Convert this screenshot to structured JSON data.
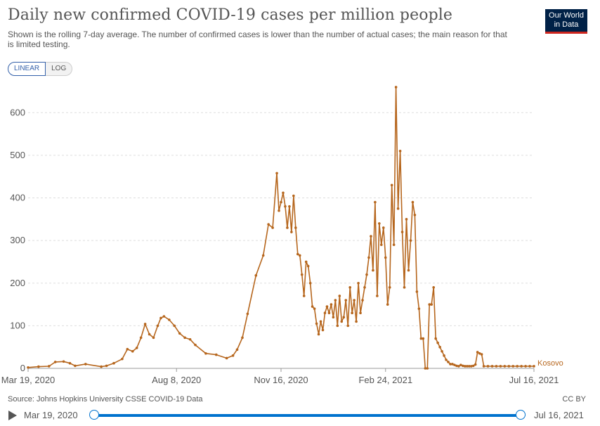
{
  "header": {
    "title": "Daily new confirmed COVID-19 cases per million people",
    "subtitle": "Shown is the rolling 7-day average. The number of confirmed cases is lower than the number of actual cases; the main reason for that is limited testing."
  },
  "logo": {
    "line1": "Our World",
    "line2": "in Data"
  },
  "controls": {
    "linear_label": "LINEAR",
    "log_label": "LOG"
  },
  "footer": {
    "source": "Source: Johns Hopkins University CSSE COVID-19 Data",
    "license": "CC BY"
  },
  "timeline": {
    "start_label": "Mar 19, 2020",
    "end_label": "Jul 16, 2021"
  },
  "colors": {
    "series": "#b6661d",
    "grid": "#dddddd",
    "axis": "#555555",
    "slider": "#0072ce"
  },
  "chart_data": {
    "type": "line",
    "title": "Daily new confirmed COVID-19 cases per million people",
    "xlabel": "",
    "ylabel": "",
    "ylim": [
      0,
      650
    ],
    "xlim": [
      0,
      484
    ],
    "x_unit": "days since Mar 19, 2020",
    "grid": true,
    "y_ticks": [
      0,
      100,
      200,
      300,
      400,
      500,
      600
    ],
    "x_ticks": [
      {
        "day": 0,
        "label": "Mar 19, 2020"
      },
      {
        "day": 142,
        "label": "Aug 8, 2020"
      },
      {
        "day": 242,
        "label": "Nov 16, 2020"
      },
      {
        "day": 342,
        "label": "Feb 24, 2021"
      },
      {
        "day": 484,
        "label": "Jul 16, 2021"
      }
    ],
    "series": [
      {
        "name": "Kosovo",
        "x": [
          0,
          10,
          20,
          26,
          34,
          40,
          45,
          55,
          70,
          75,
          82,
          90,
          95,
          100,
          104,
          108,
          112,
          116,
          120,
          124,
          127,
          130,
          135,
          140,
          145,
          150,
          155,
          160,
          170,
          180,
          190,
          196,
          200,
          205,
          210,
          218,
          225,
          230,
          234,
          238,
          240,
          242,
          244,
          246,
          248,
          250,
          252,
          254,
          256,
          258,
          260,
          262,
          264,
          266,
          268,
          270,
          272,
          274,
          276,
          278,
          280,
          282,
          284,
          286,
          288,
          290,
          292,
          294,
          296,
          298,
          300,
          302,
          304,
          306,
          308,
          310,
          312,
          314,
          316,
          318,
          320,
          322,
          324,
          326,
          328,
          330,
          332,
          334,
          336,
          338,
          340,
          342,
          344,
          346,
          348,
          350,
          352,
          354,
          356,
          358,
          360,
          362,
          364,
          366,
          368,
          370,
          372,
          374,
          376,
          378,
          380,
          382,
          384,
          386,
          388,
          390,
          392,
          394,
          396,
          398,
          400,
          402,
          404,
          406,
          408,
          410,
          412,
          414,
          416,
          418,
          420,
          422,
          424,
          426,
          428,
          430,
          432,
          434,
          436,
          440,
          444,
          448,
          452,
          456,
          460,
          464,
          468,
          472,
          476,
          480,
          484
        ],
        "values": [
          2,
          4,
          5,
          15,
          16,
          12,
          6,
          10,
          4,
          6,
          12,
          22,
          45,
          40,
          48,
          72,
          104,
          80,
          72,
          100,
          118,
          122,
          114,
          100,
          82,
          72,
          68,
          55,
          35,
          32,
          24,
          30,
          44,
          72,
          128,
          218,
          265,
          338,
          330,
          458,
          370,
          390,
          412,
          380,
          330,
          380,
          320,
          405,
          330,
          268,
          265,
          220,
          170,
          250,
          240,
          200,
          145,
          140,
          105,
          80,
          110,
          90,
          130,
          145,
          130,
          150,
          120,
          160,
          100,
          170,
          110,
          120,
          160,
          100,
          190,
          130,
          160,
          110,
          200,
          130,
          160,
          190,
          220,
          260,
          310,
          230,
          390,
          170,
          340,
          290,
          330,
          260,
          150,
          190,
          430,
          290,
          660,
          375,
          510,
          320,
          190,
          350,
          230,
          300,
          390,
          360,
          180,
          140,
          70,
          70,
          0,
          0,
          150,
          150,
          190,
          70,
          60,
          50,
          40,
          30,
          20,
          15,
          10,
          10,
          8,
          6,
          5,
          8,
          6,
          5,
          5,
          5,
          5,
          6,
          9,
          38,
          35,
          33,
          5,
          5,
          5,
          5,
          5,
          5,
          5,
          5,
          5,
          5,
          5,
          5,
          5
        ]
      }
    ],
    "series_label": "Kosovo"
  }
}
